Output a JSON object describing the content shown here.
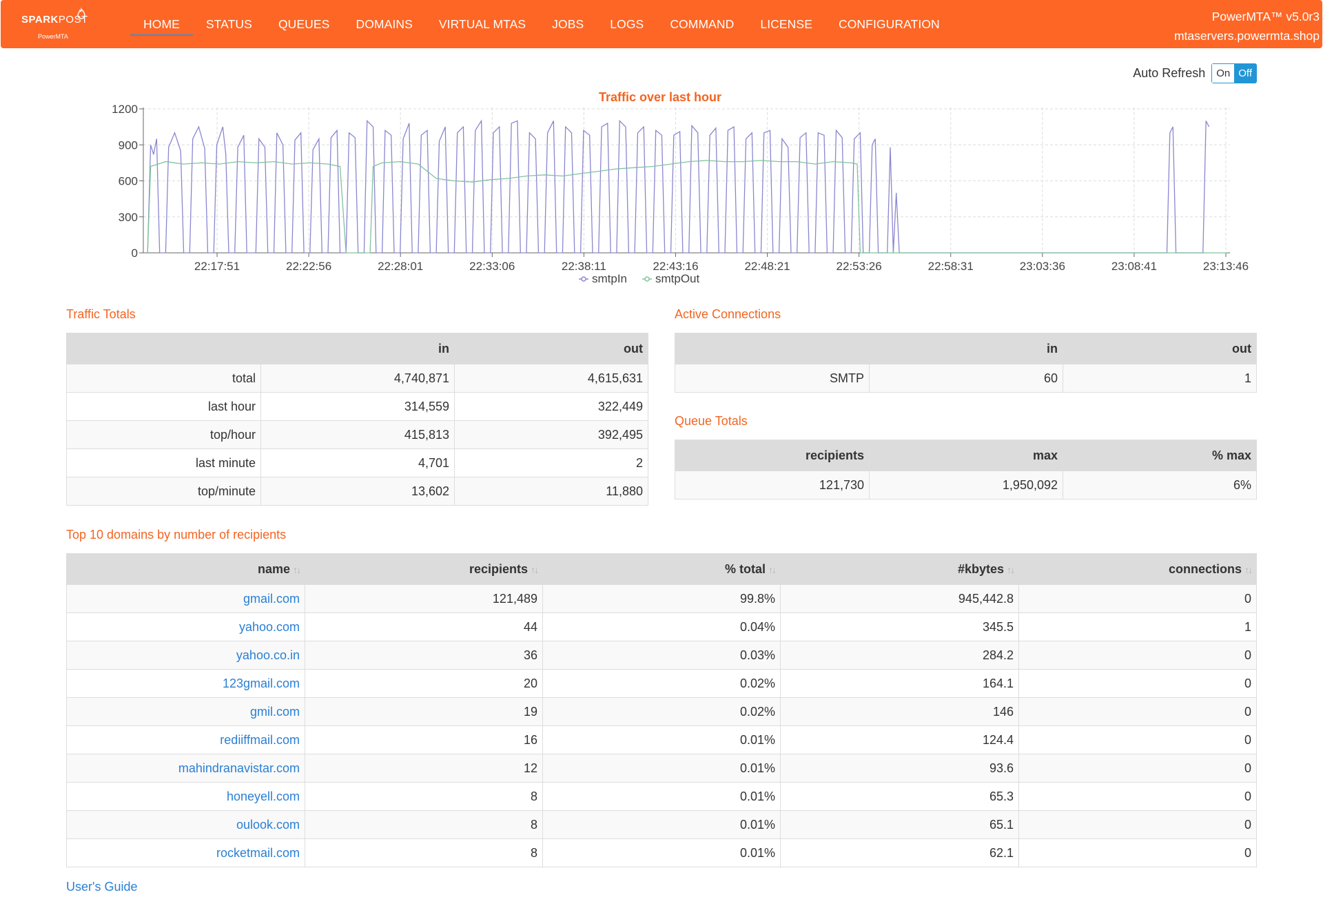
{
  "brand": {
    "name_bold": "SPARK",
    "name_light": "POST",
    "sub": "PowerMTA"
  },
  "nav": {
    "items": [
      "HOME",
      "STATUS",
      "QUEUES",
      "DOMAINS",
      "VIRTUAL MTAS",
      "JOBS",
      "LOGS",
      "COMMAND",
      "LICENSE",
      "CONFIGURATION"
    ],
    "version": "PowerMTA™ v5.0r3",
    "host": "mtaservers.powermta.shop"
  },
  "auto_refresh": {
    "label": "Auto Refresh",
    "on": "On",
    "off": "Off",
    "state": "Off"
  },
  "colors": {
    "accent": "#fd6625",
    "title": "#f26522",
    "link": "#2a7fd4",
    "smtpIn": "#8a86d0",
    "smtpOut": "#7fc49a"
  },
  "chart_data": {
    "type": "line",
    "title": "Traffic over last hour",
    "x_ticks": [
      "22:17:51",
      "22:22:56",
      "22:28:01",
      "22:33:06",
      "22:38:11",
      "22:43:16",
      "22:48:21",
      "22:53:26",
      "22:58:31",
      "23:03:36",
      "23:08:41",
      "23:13:46"
    ],
    "ylim": [
      0,
      1200
    ],
    "y_ticks": [
      0,
      300,
      600,
      900,
      1200
    ],
    "grid": true,
    "legend_position": "bottom",
    "series": [
      {
        "name": "smtpIn",
        "points": [
          [
            "22:14:00",
            0
          ],
          [
            "22:14:10",
            900
          ],
          [
            "22:14:20",
            820
          ],
          [
            "22:14:30",
            950
          ],
          [
            "22:14:40",
            0
          ],
          [
            "22:15:00",
            0
          ],
          [
            "22:15:10",
            880
          ],
          [
            "22:15:30",
            1000
          ],
          [
            "22:15:50",
            850
          ],
          [
            "22:16:00",
            0
          ],
          [
            "22:16:20",
            0
          ],
          [
            "22:16:30",
            950
          ],
          [
            "22:16:50",
            1050
          ],
          [
            "22:17:10",
            870
          ],
          [
            "22:17:20",
            0
          ],
          [
            "22:17:40",
            0
          ],
          [
            "22:17:50",
            900
          ],
          [
            "22:18:10",
            1050
          ],
          [
            "22:18:20",
            820
          ],
          [
            "22:18:30",
            0
          ],
          [
            "22:18:50",
            0
          ],
          [
            "22:19:00",
            880
          ],
          [
            "22:19:20",
            980
          ],
          [
            "22:19:30",
            0
          ],
          [
            "22:20:00",
            0
          ],
          [
            "22:20:10",
            950
          ],
          [
            "22:20:30",
            880
          ],
          [
            "22:20:40",
            0
          ],
          [
            "22:21:00",
            0
          ],
          [
            "22:21:10",
            1000
          ],
          [
            "22:21:30",
            900
          ],
          [
            "22:21:40",
            0
          ],
          [
            "22:22:00",
            0
          ],
          [
            "22:22:10",
            940
          ],
          [
            "22:22:30",
            1000
          ],
          [
            "22:22:40",
            0
          ],
          [
            "22:23:00",
            0
          ],
          [
            "22:23:10",
            860
          ],
          [
            "22:23:30",
            950
          ],
          [
            "22:23:40",
            0
          ],
          [
            "22:24:00",
            0
          ],
          [
            "22:24:10",
            960
          ],
          [
            "22:24:30",
            1020
          ],
          [
            "22:24:40",
            0
          ],
          [
            "22:25:00",
            0
          ],
          [
            "22:25:10",
            1000
          ],
          [
            "22:25:30",
            960
          ],
          [
            "22:25:40",
            0
          ],
          [
            "22:26:00",
            0
          ],
          [
            "22:26:10",
            1100
          ],
          [
            "22:26:30",
            1050
          ],
          [
            "22:26:40",
            0
          ],
          [
            "22:27:00",
            0
          ],
          [
            "22:27:10",
            1020
          ],
          [
            "22:27:30",
            980
          ],
          [
            "22:27:40",
            0
          ],
          [
            "22:28:00",
            0
          ],
          [
            "22:28:10",
            950
          ],
          [
            "22:28:30",
            1080
          ],
          [
            "22:28:40",
            0
          ],
          [
            "22:29:00",
            0
          ],
          [
            "22:29:10",
            980
          ],
          [
            "22:29:30",
            1020
          ],
          [
            "22:29:40",
            0
          ],
          [
            "22:30:00",
            0
          ],
          [
            "22:30:10",
            930
          ],
          [
            "22:30:30",
            1050
          ],
          [
            "22:30:40",
            0
          ],
          [
            "22:31:00",
            0
          ],
          [
            "22:31:10",
            1000
          ],
          [
            "22:31:30",
            1050
          ],
          [
            "22:31:40",
            0
          ],
          [
            "22:32:00",
            0
          ],
          [
            "22:32:10",
            1020
          ],
          [
            "22:32:30",
            1100
          ],
          [
            "22:32:40",
            0
          ],
          [
            "22:33:00",
            0
          ],
          [
            "22:33:10",
            1000
          ],
          [
            "22:33:30",
            1050
          ],
          [
            "22:33:40",
            0
          ],
          [
            "22:34:00",
            0
          ],
          [
            "22:34:10",
            1080
          ],
          [
            "22:34:30",
            1100
          ],
          [
            "22:34:40",
            0
          ],
          [
            "22:35:00",
            0
          ],
          [
            "22:35:10",
            1000
          ],
          [
            "22:35:30",
            950
          ],
          [
            "22:35:40",
            0
          ],
          [
            "22:36:00",
            0
          ],
          [
            "22:36:10",
            1000
          ],
          [
            "22:36:30",
            1100
          ],
          [
            "22:36:40",
            0
          ],
          [
            "22:37:00",
            0
          ],
          [
            "22:37:10",
            1050
          ],
          [
            "22:37:30",
            1000
          ],
          [
            "22:37:40",
            0
          ],
          [
            "22:38:00",
            0
          ],
          [
            "22:38:10",
            1020
          ],
          [
            "22:38:30",
            980
          ],
          [
            "22:38:40",
            0
          ],
          [
            "22:39:00",
            0
          ],
          [
            "22:39:10",
            1050
          ],
          [
            "22:39:30",
            1080
          ],
          [
            "22:39:40",
            0
          ],
          [
            "22:40:00",
            0
          ],
          [
            "22:40:10",
            1100
          ],
          [
            "22:40:30",
            1050
          ],
          [
            "22:40:40",
            0
          ],
          [
            "22:41:00",
            0
          ],
          [
            "22:41:10",
            1000
          ],
          [
            "22:41:30",
            1050
          ],
          [
            "22:41:40",
            0
          ],
          [
            "22:42:00",
            0
          ],
          [
            "22:42:10",
            1020
          ],
          [
            "22:42:30",
            980
          ],
          [
            "22:42:40",
            0
          ],
          [
            "22:43:00",
            0
          ],
          [
            "22:43:10",
            980
          ],
          [
            "22:43:30",
            1010
          ],
          [
            "22:43:40",
            0
          ],
          [
            "22:44:00",
            0
          ],
          [
            "22:44:10",
            1060
          ],
          [
            "22:44:30",
            1000
          ],
          [
            "22:44:40",
            0
          ],
          [
            "22:45:00",
            0
          ],
          [
            "22:45:10",
            980
          ],
          [
            "22:45:30",
            1040
          ],
          [
            "22:45:40",
            0
          ],
          [
            "22:46:00",
            0
          ],
          [
            "22:46:10",
            1020
          ],
          [
            "22:46:30",
            1050
          ],
          [
            "22:46:40",
            0
          ],
          [
            "22:47:00",
            0
          ],
          [
            "22:47:10",
            950
          ],
          [
            "22:47:30",
            1000
          ],
          [
            "22:47:40",
            0
          ],
          [
            "22:48:00",
            0
          ],
          [
            "22:48:10",
            1000
          ],
          [
            "22:48:30",
            1020
          ],
          [
            "22:48:40",
            0
          ],
          [
            "22:49:00",
            0
          ],
          [
            "22:49:10",
            950
          ],
          [
            "22:49:30",
            880
          ],
          [
            "22:49:40",
            0
          ],
          [
            "22:50:00",
            0
          ],
          [
            "22:50:10",
            960
          ],
          [
            "22:50:30",
            1000
          ],
          [
            "22:50:40",
            0
          ],
          [
            "22:51:00",
            0
          ],
          [
            "22:51:10",
            1000
          ],
          [
            "22:51:30",
            980
          ],
          [
            "22:51:40",
            0
          ],
          [
            "22:52:00",
            0
          ],
          [
            "22:52:10",
            1020
          ],
          [
            "22:52:30",
            960
          ],
          [
            "22:52:40",
            0
          ],
          [
            "22:53:00",
            0
          ],
          [
            "22:53:10",
            950
          ],
          [
            "22:53:30",
            1000
          ],
          [
            "22:53:40",
            0
          ],
          [
            "22:54:00",
            0
          ],
          [
            "22:54:10",
            900
          ],
          [
            "22:54:20",
            950
          ],
          [
            "22:54:30",
            0
          ],
          [
            "22:55:00",
            0
          ],
          [
            "22:55:10",
            880
          ],
          [
            "22:55:20",
            0
          ],
          [
            "22:55:30",
            500
          ],
          [
            "22:55:40",
            0
          ],
          [
            "23:10:30",
            0
          ],
          [
            "23:10:40",
            1000
          ],
          [
            "23:10:50",
            1050
          ],
          [
            "23:11:00",
            0
          ],
          [
            "23:12:30",
            0
          ],
          [
            "23:12:40",
            1100
          ],
          [
            "23:12:50",
            1050
          ]
        ]
      },
      {
        "name": "smtpOut",
        "points": [
          [
            "22:14:00",
            0
          ],
          [
            "22:14:10",
            720
          ],
          [
            "22:15:00",
            760
          ],
          [
            "22:16:00",
            740
          ],
          [
            "22:17:00",
            750
          ],
          [
            "22:18:00",
            740
          ],
          [
            "22:19:00",
            760
          ],
          [
            "22:20:00",
            750
          ],
          [
            "22:21:00",
            760
          ],
          [
            "22:22:00",
            740
          ],
          [
            "22:23:00",
            750
          ],
          [
            "22:24:00",
            740
          ],
          [
            "22:24:40",
            720
          ],
          [
            "22:25:00",
            0
          ],
          [
            "22:26:20",
            0
          ],
          [
            "22:26:30",
            720
          ],
          [
            "22:27:00",
            750
          ],
          [
            "22:28:00",
            760
          ],
          [
            "22:29:00",
            740
          ],
          [
            "22:30:00",
            620
          ],
          [
            "22:31:00",
            600
          ],
          [
            "22:32:00",
            590
          ],
          [
            "22:33:00",
            610
          ],
          [
            "22:34:00",
            620
          ],
          [
            "22:35:00",
            640
          ],
          [
            "22:36:00",
            650
          ],
          [
            "22:37:00",
            640
          ],
          [
            "22:38:00",
            660
          ],
          [
            "22:39:00",
            680
          ],
          [
            "22:40:00",
            700
          ],
          [
            "22:41:00",
            710
          ],
          [
            "22:42:00",
            720
          ],
          [
            "22:43:00",
            740
          ],
          [
            "22:44:00",
            760
          ],
          [
            "22:45:00",
            770
          ],
          [
            "22:46:00",
            760
          ],
          [
            "22:47:00",
            760
          ],
          [
            "22:48:00",
            770
          ],
          [
            "22:49:00",
            760
          ],
          [
            "22:50:00",
            760
          ],
          [
            "22:51:00",
            740
          ],
          [
            "22:52:00",
            760
          ],
          [
            "22:53:00",
            750
          ],
          [
            "22:53:20",
            740
          ],
          [
            "22:53:30",
            0
          ],
          [
            "23:13:50",
            0
          ]
        ]
      }
    ]
  },
  "traffic_totals": {
    "title": "Traffic Totals",
    "headers": [
      "",
      "in",
      "out"
    ],
    "rows": [
      [
        "total",
        "4,740,871",
        "4,615,631"
      ],
      [
        "last hour",
        "314,559",
        "322,449"
      ],
      [
        "top/hour",
        "415,813",
        "392,495"
      ],
      [
        "last minute",
        "4,701",
        "2"
      ],
      [
        "top/minute",
        "13,602",
        "11,880"
      ]
    ]
  },
  "active_connections": {
    "title": "Active Connections",
    "headers": [
      "",
      "in",
      "out"
    ],
    "rows": [
      [
        "SMTP",
        "60",
        "1"
      ]
    ]
  },
  "queue_totals": {
    "title": "Queue Totals",
    "headers": [
      "recipients",
      "max",
      "% max"
    ],
    "rows": [
      [
        "121,730",
        "1,950,092",
        "6%"
      ]
    ]
  },
  "top_domains": {
    "title": "Top 10 domains by number of recipients",
    "headers": [
      "name",
      "recipients",
      "% total",
      "#kbytes",
      "connections"
    ],
    "rows": [
      [
        "gmail.com",
        "121,489",
        "99.8%",
        "945,442.8",
        "0"
      ],
      [
        "yahoo.com",
        "44",
        "0.04%",
        "345.5",
        "1"
      ],
      [
        "yahoo.co.in",
        "36",
        "0.03%",
        "284.2",
        "0"
      ],
      [
        "123gmail.com",
        "20",
        "0.02%",
        "164.1",
        "0"
      ],
      [
        "gmil.com",
        "19",
        "0.02%",
        "146",
        "0"
      ],
      [
        "rediiffmail.com",
        "16",
        "0.01%",
        "124.4",
        "0"
      ],
      [
        "mahindranavistar.com",
        "12",
        "0.01%",
        "93.6",
        "0"
      ],
      [
        "honeyell.com",
        "8",
        "0.01%",
        "65.3",
        "0"
      ],
      [
        "oulook.com",
        "8",
        "0.01%",
        "65.1",
        "0"
      ],
      [
        "rocketmail.com",
        "8",
        "0.01%",
        "62.1",
        "0"
      ]
    ]
  },
  "footer": {
    "users_guide": "User's Guide"
  }
}
